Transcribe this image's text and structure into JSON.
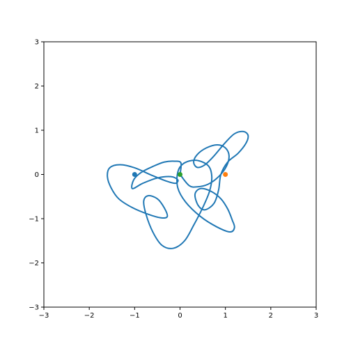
{
  "chart_data": {
    "type": "line",
    "title": "",
    "xlabel": "",
    "ylabel": "",
    "xlim": [
      -3,
      3
    ],
    "ylim": [
      -3,
      3
    ],
    "x_ticks": [
      -3,
      -2,
      -1,
      0,
      1,
      2,
      3
    ],
    "y_ticks": [
      -3,
      -2,
      -1,
      0,
      1,
      2,
      3
    ],
    "x_tick_labels": [
      "−3",
      "−2",
      "−1",
      "0",
      "1",
      "2",
      "3"
    ],
    "y_tick_labels": [
      "−3",
      "−2",
      "−1",
      "0",
      "1",
      "2",
      "3"
    ],
    "grid": false,
    "legend": "none",
    "series": [
      {
        "kind": "curve",
        "color": "#1f77b4",
        "points": [
          [
            0.0,
            0.0
          ],
          [
            0.2,
            -0.25
          ],
          [
            0.38,
            -0.28
          ],
          [
            0.62,
            -0.22
          ],
          [
            0.85,
            -0.05
          ],
          [
            1.02,
            0.18
          ],
          [
            1.08,
            0.42
          ],
          [
            1.0,
            0.6
          ],
          [
            0.82,
            0.67
          ],
          [
            0.58,
            0.6
          ],
          [
            0.38,
            0.45
          ],
          [
            0.3,
            0.28
          ],
          [
            0.38,
            0.16
          ],
          [
            0.55,
            0.22
          ],
          [
            0.75,
            0.42
          ],
          [
            0.98,
            0.7
          ],
          [
            1.2,
            0.92
          ],
          [
            1.4,
            0.97
          ],
          [
            1.5,
            0.88
          ],
          [
            1.45,
            0.7
          ],
          [
            1.28,
            0.48
          ],
          [
            1.05,
            0.28
          ],
          [
            0.9,
            0.0
          ],
          [
            0.85,
            -0.35
          ],
          [
            0.75,
            -0.65
          ],
          [
            0.55,
            -0.8
          ],
          [
            0.4,
            -0.7
          ],
          [
            0.33,
            -0.45
          ],
          [
            0.45,
            -0.32
          ],
          [
            0.68,
            -0.38
          ],
          [
            0.9,
            -0.55
          ],
          [
            1.05,
            -0.78
          ],
          [
            1.15,
            -1.03
          ],
          [
            1.2,
            -1.2
          ],
          [
            1.1,
            -1.3
          ],
          [
            0.8,
            -1.18
          ],
          [
            0.45,
            -0.95
          ],
          [
            0.12,
            -0.62
          ],
          [
            -0.05,
            -0.3
          ],
          [
            -0.05,
            0.05
          ],
          [
            0.08,
            0.25
          ],
          [
            0.35,
            0.32
          ],
          [
            0.62,
            0.2
          ],
          [
            0.7,
            -0.05
          ],
          [
            0.65,
            -0.38
          ],
          [
            0.5,
            -0.75
          ],
          [
            0.3,
            -1.15
          ],
          [
            0.1,
            -1.5
          ],
          [
            -0.15,
            -1.67
          ],
          [
            -0.4,
            -1.6
          ],
          [
            -0.6,
            -1.3
          ],
          [
            -0.75,
            -0.9
          ],
          [
            -0.8,
            -0.6
          ],
          [
            -0.7,
            -0.48
          ],
          [
            -0.5,
            -0.55
          ],
          [
            -0.35,
            -0.75
          ],
          [
            -0.28,
            -0.95
          ],
          [
            -0.42,
            -0.98
          ],
          [
            -0.7,
            -0.9
          ],
          [
            -1.05,
            -0.75
          ],
          [
            -1.35,
            -0.55
          ],
          [
            -1.52,
            -0.3
          ],
          [
            -1.6,
            -0.05
          ],
          [
            -1.55,
            0.15
          ],
          [
            -1.32,
            0.22
          ],
          [
            -1.0,
            0.15
          ],
          [
            -0.62,
            -0.02
          ],
          [
            -0.3,
            -0.15
          ],
          [
            -0.1,
            -0.2
          ],
          [
            -0.05,
            -0.12
          ],
          [
            -0.2,
            -0.05
          ],
          [
            -0.5,
            -0.08
          ],
          [
            -0.82,
            -0.2
          ],
          [
            -1.05,
            -0.32
          ],
          [
            -1.02,
            -0.12
          ],
          [
            -0.85,
            0.05
          ],
          [
            -0.6,
            0.18
          ],
          [
            -0.35,
            0.28
          ],
          [
            -0.12,
            0.3
          ],
          [
            0.02,
            0.26
          ],
          [
            0.0,
            0.0
          ]
        ]
      }
    ],
    "points": [
      {
        "x": -1,
        "y": 0,
        "color": "#1f77b4"
      },
      {
        "x": 1,
        "y": 0,
        "color": "#ff7f0e"
      },
      {
        "x": 0,
        "y": 0,
        "color": "#2ca02c"
      }
    ]
  }
}
